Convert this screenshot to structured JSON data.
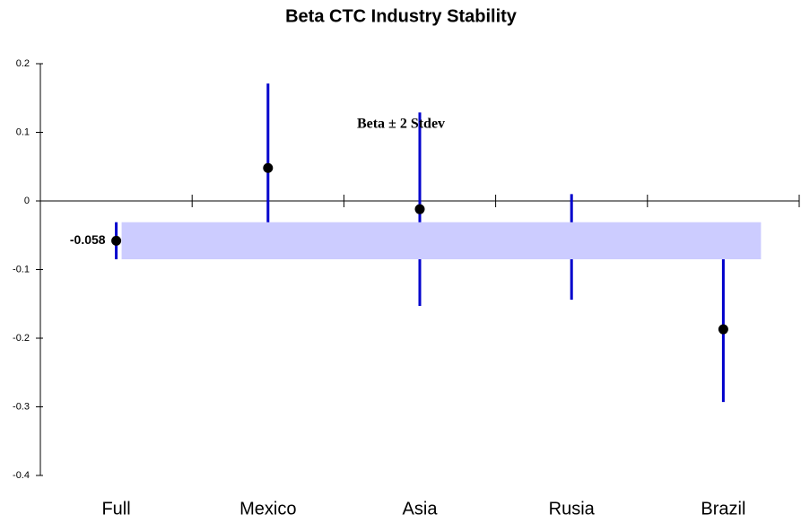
{
  "chart_data": {
    "type": "errorbar",
    "title": "Beta CTC Industry Stability",
    "annotation": "Beta ± 2 Stdev",
    "categories": [
      "Full",
      "Mexico",
      "Asia",
      "Rusia",
      "Brazil"
    ],
    "values": [
      -0.058,
      0.048,
      -0.012,
      -0.067,
      -0.187
    ],
    "errors": [
      0.027,
      0.123,
      0.141,
      0.077,
      0.106
    ],
    "value_labels": [
      "-0.058",
      null,
      null,
      null,
      null
    ],
    "color": "#0000cc",
    "band_color": "#ccccff",
    "ylim": [
      -0.4,
      0.2
    ],
    "yticks": [
      -0.4,
      -0.3,
      -0.2,
      -0.1,
      0,
      0.1,
      0.2
    ]
  }
}
